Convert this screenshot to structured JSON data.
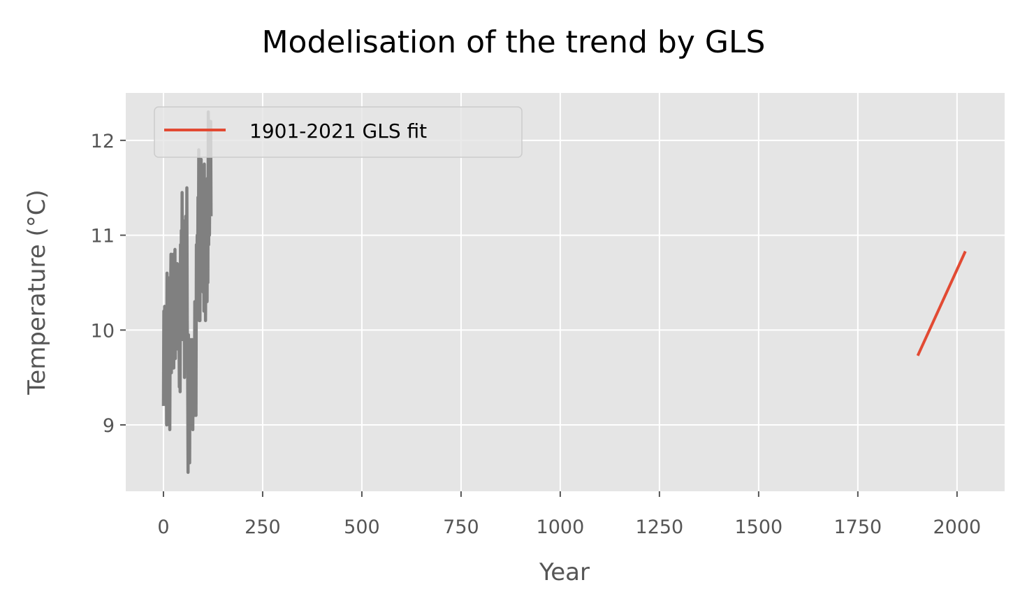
{
  "chart_data": {
    "type": "line",
    "title": "Modelisation of the trend by GLS",
    "xlabel": "Year",
    "ylabel": "Temperature (°C)",
    "xlim": [
      -95,
      2120
    ],
    "ylim": [
      8.3,
      12.5
    ],
    "xticks": [
      0,
      250,
      500,
      750,
      1000,
      1250,
      1500,
      1750,
      2000
    ],
    "yticks": [
      9,
      10,
      11,
      12
    ],
    "grid": true,
    "legend": {
      "placement": "top-left",
      "entries": [
        "1901-2021 GLS fit"
      ]
    },
    "series": [
      {
        "label": "",
        "color": "#808080",
        "x": [
          0,
          1,
          2,
          3,
          4,
          5,
          6,
          7,
          8,
          9,
          10,
          11,
          12,
          13,
          14,
          15,
          16,
          17,
          18,
          19,
          20,
          21,
          22,
          23,
          24,
          25,
          26,
          27,
          28,
          29,
          30,
          31,
          32,
          33,
          34,
          35,
          36,
          37,
          38,
          39,
          40,
          41,
          42,
          43,
          44,
          45,
          46,
          47,
          48,
          49,
          50,
          51,
          52,
          53,
          54,
          55,
          56,
          57,
          58,
          59,
          60,
          61,
          62,
          63,
          64,
          65,
          66,
          67,
          68,
          69,
          70,
          71,
          72,
          73,
          74,
          75,
          76,
          77,
          78,
          79,
          80,
          81,
          82,
          83,
          84,
          85,
          86,
          87,
          88,
          89,
          90,
          91,
          92,
          93,
          94,
          95,
          96,
          97,
          98,
          99,
          100,
          101,
          102,
          103,
          104,
          105,
          106,
          107,
          108,
          109,
          110,
          111,
          112,
          113,
          114,
          115,
          116,
          117,
          118,
          119,
          120
        ],
        "y": [
          9.2,
          10.2,
          9.4,
          10.25,
          9.5,
          9.6,
          9.3,
          10.0,
          9.0,
          10.6,
          9.5,
          9.7,
          9.4,
          10.55,
          9.0,
          9.8,
          8.95,
          10.0,
          10.4,
          10.8,
          9.55,
          10.2,
          10.1,
          10.3,
          9.6,
          10.8,
          9.6,
          10.7,
          10.3,
          10.85,
          9.7,
          10.5,
          10.0,
          10.6,
          9.8,
          10.7,
          10.3,
          10.4,
          10.0,
          10.2,
          9.4,
          10.5,
          9.35,
          10.9,
          10.0,
          11.05,
          10.2,
          11.45,
          9.9,
          10.5,
          11.1,
          10.4,
          11.15,
          9.5,
          10.9,
          10.0,
          11.2,
          10.4,
          9.8,
          11.5,
          10.1,
          9.6,
          8.5,
          9.95,
          9.0,
          9.8,
          8.6,
          9.9,
          9.3,
          9.8,
          9.5,
          9.1,
          9.9,
          9.2,
          8.95,
          9.8,
          9.4,
          9.9,
          9.1,
          10.3,
          9.6,
          10.0,
          9.1,
          10.9,
          10.2,
          11.0,
          10.3,
          11.4,
          10.6,
          11.9,
          10.1,
          11.8,
          10.1,
          11.7,
          10.9,
          11.8,
          10.5,
          11.2,
          10.8,
          11.0,
          10.4,
          11.7,
          10.2,
          11.75,
          10.7,
          11.5,
          10.1,
          10.8,
          10.6,
          11.3,
          10.3,
          11.6,
          10.5,
          12.3,
          10.9,
          12.1,
          11.0,
          11.9,
          11.3,
          12.2,
          11.2
        ]
      },
      {
        "label": "1901-2021 GLS fit",
        "color": "#E24A33",
        "x": [
          1901,
          2021
        ],
        "y": [
          9.73,
          10.83
        ]
      }
    ]
  }
}
